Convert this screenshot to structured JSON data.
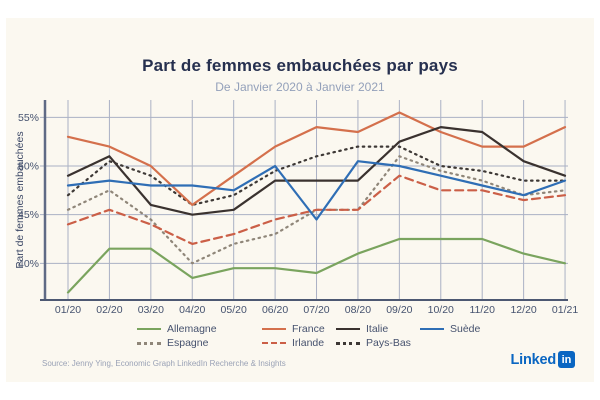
{
  "page": {
    "background": "#ffffff",
    "card_background": "#fbf8f0"
  },
  "header": {
    "title": "Part de femmes embauchées par pays",
    "subtitle": "De Janvier 2020 à Janvier 2021"
  },
  "chart_data": {
    "type": "line",
    "title": "Part de femmes embauchées par pays",
    "subtitle": "De Janvier 2020 à Janvier 2021",
    "ylabel": "Part de femmes embauchées",
    "xlabel": "",
    "categories": [
      "01/20",
      "02/20",
      "03/20",
      "04/20",
      "05/20",
      "06/20",
      "07/20",
      "08/20",
      "09/20",
      "10/20",
      "11/20",
      "12/20",
      "01/21"
    ],
    "y_tick_labels": [
      "55%",
      "50%",
      "45%",
      "40%"
    ],
    "y_tick_values": [
      55,
      50,
      45,
      40
    ],
    "ylim": [
      36.2,
      56.8
    ],
    "grid": true,
    "legend_position": "bottom",
    "grid_color": "#aab1c4",
    "axis_color": "#5f6a85",
    "series": [
      {
        "name": "Allemagne",
        "color": "#7aa45e",
        "style": "solid",
        "values": [
          37,
          41.5,
          41.5,
          38.5,
          39.5,
          39.5,
          39,
          41,
          42.5,
          42.5,
          42.5,
          41,
          40
        ]
      },
      {
        "name": "France",
        "color": "#d4704c",
        "style": "solid",
        "values": [
          53,
          52,
          50,
          46,
          49,
          52,
          54,
          53.5,
          55.5,
          53.5,
          52,
          52,
          54
        ]
      },
      {
        "name": "Italie",
        "color": "#3a322f",
        "style": "solid",
        "values": [
          49,
          51,
          46,
          45,
          45.5,
          48.5,
          48.5,
          48.5,
          52.5,
          54,
          53.5,
          50.5,
          49
        ]
      },
      {
        "name": "Suède",
        "color": "#2f6eb5",
        "style": "solid",
        "values": [
          48,
          48.5,
          48,
          48,
          47.5,
          50,
          44.5,
          50.5,
          50,
          49,
          48,
          47,
          48.5
        ]
      },
      {
        "name": "Espagne",
        "color": "#8f8679",
        "style": "dotted",
        "values": [
          45.5,
          47.5,
          44.5,
          40,
          42,
          43,
          45.5,
          45.5,
          51,
          49.5,
          48.5,
          47,
          47.5
        ]
      },
      {
        "name": "Irlande",
        "color": "#cb5f47",
        "style": "dashed",
        "values": [
          44,
          45.5,
          44,
          42,
          43,
          44.5,
          45.5,
          45.5,
          49,
          47.5,
          47.5,
          46.5,
          47
        ]
      },
      {
        "name": "Pays-Bas",
        "color": "#3d3835",
        "style": "dotted",
        "values": [
          47,
          50.5,
          49,
          46,
          47,
          49.5,
          51,
          52,
          52,
          50,
          49.5,
          48.5,
          48.5
        ]
      }
    ],
    "legend_rows": [
      [
        "Allemagne",
        "France",
        "Italie",
        "Suède"
      ],
      [
        "Espagne",
        "Irlande",
        "Pays-Bas"
      ]
    ]
  },
  "footer": {
    "source": "Source: Jenny Ying, Economic Graph LinkedIn Recherche & Insights",
    "logo_text": "Linked",
    "logo_badge": "in"
  }
}
